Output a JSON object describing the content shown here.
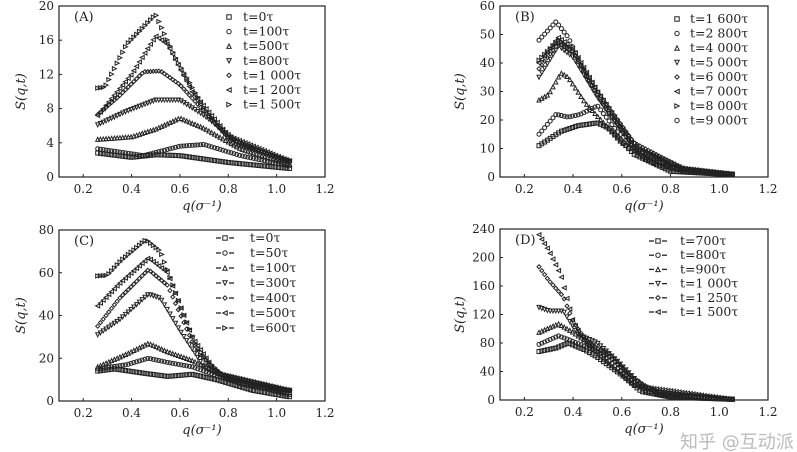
{
  "chart_data": [
    {
      "type": "scatter",
      "panel_label": "(A)",
      "xlabel": "q(σ⁻¹)",
      "ylabel": "S(q,t)",
      "xlim": [
        0.1,
        1.2
      ],
      "ylim": [
        0,
        20
      ],
      "xticks": [
        "0.2",
        "0.4",
        "0.6",
        "0.8",
        "1.0",
        "1.2"
      ],
      "yticks": [
        "0",
        "4",
        "8",
        "12",
        "16",
        "20"
      ],
      "legend_style": "marker",
      "legend_position": "top-right",
      "series": [
        {
          "name": "t=0τ",
          "marker": "square",
          "points": [
            [
              0.26,
              2.8
            ],
            [
              0.4,
              2.3
            ],
            [
              0.5,
              2.6
            ],
            [
              0.6,
              2.5
            ],
            [
              0.8,
              1.7
            ],
            [
              1.05,
              1.0
            ]
          ]
        },
        {
          "name": "t=100τ",
          "marker": "circle",
          "points": [
            [
              0.26,
              3.3
            ],
            [
              0.45,
              2.5
            ],
            [
              0.6,
              3.6
            ],
            [
              0.7,
              3.8
            ],
            [
              0.85,
              2.5
            ],
            [
              1.05,
              1.3
            ]
          ]
        },
        {
          "name": "t=500τ",
          "marker": "triangle-up",
          "points": [
            [
              0.26,
              4.4
            ],
            [
              0.4,
              4.7
            ],
            [
              0.5,
              5.6
            ],
            [
              0.6,
              6.9
            ],
            [
              0.7,
              5.7
            ],
            [
              0.85,
              3.3
            ],
            [
              1.05,
              1.5
            ]
          ]
        },
        {
          "name": "t=800τ",
          "marker": "triangle-down",
          "points": [
            [
              0.26,
              6.1
            ],
            [
              0.38,
              7.7
            ],
            [
              0.5,
              9
            ],
            [
              0.6,
              9
            ],
            [
              0.7,
              7.2
            ],
            [
              0.85,
              3.8
            ],
            [
              1.05,
              1.7
            ]
          ]
        },
        {
          "name": "t=1 000τ",
          "marker": "diamond",
          "points": [
            [
              0.26,
              7.3
            ],
            [
              0.35,
              9.5
            ],
            [
              0.45,
              12.3
            ],
            [
              0.52,
              12.4
            ],
            [
              0.6,
              10.8
            ],
            [
              0.8,
              4.6
            ],
            [
              1.05,
              1.8
            ]
          ]
        },
        {
          "name": "t=1 200τ",
          "marker": "triangle-left",
          "points": [
            [
              0.26,
              7.2
            ],
            [
              0.4,
              12
            ],
            [
              0.5,
              16.5
            ],
            [
              0.55,
              15.5
            ],
            [
              0.65,
              10
            ],
            [
              0.8,
              4.8
            ],
            [
              1.05,
              1.9
            ]
          ]
        },
        {
          "name": "t=1 500τ",
          "marker": "triangle-right",
          "points": [
            [
              0.26,
              10.4
            ],
            [
              0.29,
              10.5
            ],
            [
              0.38,
              15.5
            ],
            [
              0.5,
              19
            ],
            [
              0.58,
              14
            ],
            [
              0.7,
              8
            ],
            [
              0.82,
              4
            ],
            [
              1.05,
              2
            ]
          ]
        }
      ]
    },
    {
      "type": "scatter",
      "panel_label": "(B)",
      "xlabel": "q(σ⁻¹)",
      "ylabel": "S(q,t)",
      "xlim": [
        0.1,
        1.2
      ],
      "ylim": [
        0,
        60
      ],
      "xticks": [
        "0.2",
        "0.4",
        "0.6",
        "0.8",
        "1.0",
        "1.2"
      ],
      "yticks": [
        "0",
        "10",
        "20",
        "30",
        "40",
        "50",
        "60"
      ],
      "legend_style": "marker",
      "legend_position": "top-right",
      "series": [
        {
          "name": "t=1 600τ",
          "marker": "square",
          "points": [
            [
              0.26,
              11
            ],
            [
              0.35,
              16
            ],
            [
              0.42,
              18
            ],
            [
              0.5,
              19
            ],
            [
              0.55,
              17
            ],
            [
              0.65,
              8
            ],
            [
              0.8,
              2
            ],
            [
              1.05,
              0.8
            ]
          ]
        },
        {
          "name": "t=2 800τ",
          "marker": "circle",
          "points": [
            [
              0.26,
              15
            ],
            [
              0.33,
              22
            ],
            [
              0.38,
              21
            ],
            [
              0.43,
              22
            ],
            [
              0.5,
              25
            ],
            [
              0.58,
              16
            ],
            [
              0.7,
              6
            ],
            [
              0.9,
              2
            ],
            [
              1.05,
              1
            ]
          ]
        },
        {
          "name": "t=4 000τ",
          "marker": "triangle-up",
          "points": [
            [
              0.26,
              27
            ],
            [
              0.3,
              29
            ],
            [
              0.35,
              36.5
            ],
            [
              0.38,
              35
            ],
            [
              0.45,
              26
            ],
            [
              0.6,
              12
            ],
            [
              0.75,
              4
            ],
            [
              1.05,
              1
            ]
          ]
        },
        {
          "name": "t=5 000τ",
          "marker": "triangle-down",
          "points": [
            [
              0.26,
              35
            ],
            [
              0.34,
              46
            ],
            [
              0.4,
              42
            ],
            [
              0.5,
              28
            ],
            [
              0.65,
              10
            ],
            [
              0.8,
              3
            ],
            [
              1.05,
              1
            ]
          ]
        },
        {
          "name": "t=6 000τ",
          "marker": "diamond",
          "points": [
            [
              0.26,
              38
            ],
            [
              0.34,
              47
            ],
            [
              0.4,
              44
            ],
            [
              0.5,
              30
            ],
            [
              0.65,
              12
            ],
            [
              0.85,
              3
            ],
            [
              1.05,
              1
            ]
          ]
        },
        {
          "name": "t=7 000τ",
          "marker": "triangle-left",
          "points": [
            [
              0.26,
              40
            ],
            [
              0.34,
              49
            ],
            [
              0.4,
              45
            ],
            [
              0.5,
              30
            ],
            [
              0.65,
              11
            ],
            [
              0.85,
              3
            ],
            [
              1.05,
              1
            ]
          ]
        },
        {
          "name": "t=8 000τ",
          "marker": "triangle-right",
          "points": [
            [
              0.26,
              41
            ],
            [
              0.34,
              48
            ],
            [
              0.4,
              44
            ],
            [
              0.5,
              29
            ],
            [
              0.65,
              11
            ],
            [
              0.85,
              2.5
            ],
            [
              1.05,
              1
            ]
          ]
        },
        {
          "name": "t=9 000τ",
          "marker": "circle",
          "points": [
            [
              0.26,
              48
            ],
            [
              0.33,
              54.5
            ],
            [
              0.38,
              49
            ],
            [
              0.45,
              36
            ],
            [
              0.55,
              22
            ],
            [
              0.7,
              7
            ],
            [
              0.85,
              2
            ],
            [
              1.05,
              1
            ]
          ]
        }
      ]
    },
    {
      "type": "line",
      "panel_label": "(C)",
      "xlabel": "q(σ⁻¹)",
      "ylabel": "S(q,t)",
      "xlim": [
        0.1,
        1.2
      ],
      "ylim": [
        0,
        80
      ],
      "xticks": [
        "0.2",
        "0.4",
        "0.6",
        "0.8",
        "1.0",
        "1.2"
      ],
      "yticks": [
        "0",
        "20",
        "40",
        "60",
        "80"
      ],
      "legend_style": "line-marker",
      "legend_position": "top-right",
      "series": [
        {
          "name": "t=0τ",
          "marker": "square",
          "points": [
            [
              0.26,
              14
            ],
            [
              0.33,
              15
            ],
            [
              0.45,
              13
            ],
            [
              0.55,
              11.5
            ],
            [
              0.65,
              12.5
            ],
            [
              0.75,
              10
            ],
            [
              0.9,
              5
            ],
            [
              1.05,
              2
            ]
          ]
        },
        {
          "name": "t=50τ",
          "marker": "circle",
          "points": [
            [
              0.26,
              15
            ],
            [
              0.38,
              17
            ],
            [
              0.47,
              20
            ],
            [
              0.55,
              18
            ],
            [
              0.65,
              16
            ],
            [
              0.8,
              10
            ],
            [
              1.05,
              3
            ]
          ]
        },
        {
          "name": "t=100τ",
          "marker": "triangle-up",
          "points": [
            [
              0.26,
              16
            ],
            [
              0.38,
              22
            ],
            [
              0.47,
              27
            ],
            [
              0.55,
              23
            ],
            [
              0.65,
              19
            ],
            [
              0.8,
              11
            ],
            [
              1.05,
              4
            ]
          ]
        },
        {
          "name": "t=300τ",
          "marker": "triangle-down",
          "points": [
            [
              0.26,
              31
            ],
            [
              0.35,
              38
            ],
            [
              0.47,
              50
            ],
            [
              0.52,
              48
            ],
            [
              0.6,
              33
            ],
            [
              0.7,
              16
            ],
            [
              0.85,
              8
            ],
            [
              1.05,
              5
            ]
          ]
        },
        {
          "name": "t=400τ",
          "marker": "diamond",
          "points": [
            [
              0.26,
              35
            ],
            [
              0.35,
              48
            ],
            [
              0.47,
              61.5
            ],
            [
              0.55,
              54
            ],
            [
              0.65,
              28
            ],
            [
              0.75,
              13
            ],
            [
              1.05,
              5
            ]
          ]
        },
        {
          "name": "t=500τ",
          "marker": "triangle-left",
          "points": [
            [
              0.26,
              44.5
            ],
            [
              0.35,
              55
            ],
            [
              0.47,
              67
            ],
            [
              0.55,
              60
            ],
            [
              0.65,
              30
            ],
            [
              0.75,
              13
            ],
            [
              1.05,
              5
            ]
          ]
        },
        {
          "name": "t=600τ",
          "marker": "triangle-right",
          "points": [
            [
              0.26,
              58.5
            ],
            [
              0.3,
              58.8
            ],
            [
              0.36,
              66
            ],
            [
              0.46,
              75.5
            ],
            [
              0.52,
              70
            ],
            [
              0.6,
              45
            ],
            [
              0.68,
              22
            ],
            [
              0.8,
              10
            ],
            [
              1.05,
              5
            ]
          ]
        }
      ]
    },
    {
      "type": "line",
      "panel_label": "(D)",
      "xlabel": "q(σ⁻¹)",
      "ylabel": "S(q,t)",
      "xlim": [
        0.1,
        1.2
      ],
      "ylim": [
        0,
        240
      ],
      "xticks": [
        "0.2",
        "0.4",
        "0.6",
        "0.8",
        "1.0",
        "1.2"
      ],
      "yticks": [
        "0",
        "40",
        "80",
        "120",
        "160",
        "200",
        "240"
      ],
      "legend_style": "line-marker",
      "legend_position": "top-right",
      "series": [
        {
          "name": "t=700τ",
          "marker": "square",
          "points": [
            [
              0.26,
              68
            ],
            [
              0.33,
              73
            ],
            [
              0.38,
              80
            ],
            [
              0.45,
              70
            ],
            [
              0.5,
              60
            ],
            [
              0.6,
              35
            ],
            [
              0.68,
              12
            ],
            [
              0.8,
              4
            ],
            [
              1.05,
              1
            ]
          ]
        },
        {
          "name": "t=800τ",
          "marker": "circle",
          "points": [
            [
              0.26,
              78
            ],
            [
              0.34,
              90
            ],
            [
              0.38,
              85
            ],
            [
              0.45,
              75
            ],
            [
              0.52,
              65
            ],
            [
              0.6,
              38
            ],
            [
              0.7,
              12
            ],
            [
              1.05,
              1
            ]
          ]
        },
        {
          "name": "t=900τ",
          "marker": "triangle-up",
          "points": [
            [
              0.26,
              95
            ],
            [
              0.34,
              107
            ],
            [
              0.4,
              95
            ],
            [
              0.47,
              78
            ],
            [
              0.55,
              65
            ],
            [
              0.65,
              30
            ],
            [
              0.75,
              8
            ],
            [
              1.05,
              1
            ]
          ]
        },
        {
          "name": "t=1 000τ",
          "marker": "triangle-down",
          "points": [
            [
              0.26,
              130
            ],
            [
              0.3,
              125
            ],
            [
              0.36,
              125
            ],
            [
              0.42,
              92
            ],
            [
              0.5,
              80
            ],
            [
              0.58,
              55
            ],
            [
              0.68,
              20
            ],
            [
              0.8,
              5
            ],
            [
              1.05,
              1
            ]
          ]
        },
        {
          "name": "t=1 250τ",
          "marker": "diamond",
          "points": [
            [
              0.26,
              187
            ],
            [
              0.3,
              168
            ],
            [
              0.36,
              145
            ],
            [
              0.4,
              110
            ],
            [
              0.45,
              85
            ],
            [
              0.55,
              60
            ],
            [
              0.65,
              30
            ],
            [
              0.75,
              8
            ],
            [
              1.05,
              1
            ]
          ]
        },
        {
          "name": "t=1 500τ",
          "marker": "triangle-left",
          "points": [
            [
              0.26,
              232
            ],
            [
              0.3,
              210
            ],
            [
              0.35,
              175
            ],
            [
              0.4,
              110
            ],
            [
              0.45,
              80
            ],
            [
              0.55,
              50
            ],
            [
              0.65,
              20
            ],
            [
              1.05,
              1
            ]
          ]
        }
      ]
    }
  ],
  "watermark": "知乎 @互动派"
}
